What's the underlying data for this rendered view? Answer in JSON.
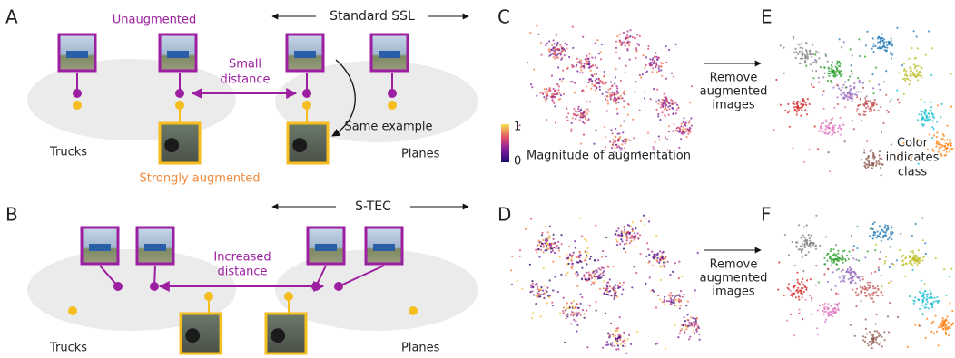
{
  "panels": {
    "a": {
      "letter": "A",
      "heading": "Standard SSL",
      "unaugmented": "Unaugmented",
      "distance": [
        "Small",
        "distance"
      ],
      "same": "Same example",
      "left_group": "Trucks",
      "right_group": "Planes",
      "augmented": "Strongly augmented"
    },
    "b": {
      "letter": "B",
      "heading": "S-TEC",
      "distance": [
        "Increased",
        "distance"
      ],
      "left_group": "Trucks",
      "right_group": "Planes"
    },
    "c": {
      "letter": "C",
      "colorbar_ticks": [
        1,
        0
      ],
      "colorbar_label": "Magnitude of augmentation"
    },
    "d": {
      "letter": "D"
    },
    "e": {
      "letter": "E",
      "arrow": [
        "Remove",
        "augmented",
        "images"
      ],
      "note": [
        "Color",
        "indicates",
        "class"
      ]
    },
    "f": {
      "letter": "F",
      "arrow": [
        "Remove",
        "augmented",
        "images"
      ]
    }
  }
}
